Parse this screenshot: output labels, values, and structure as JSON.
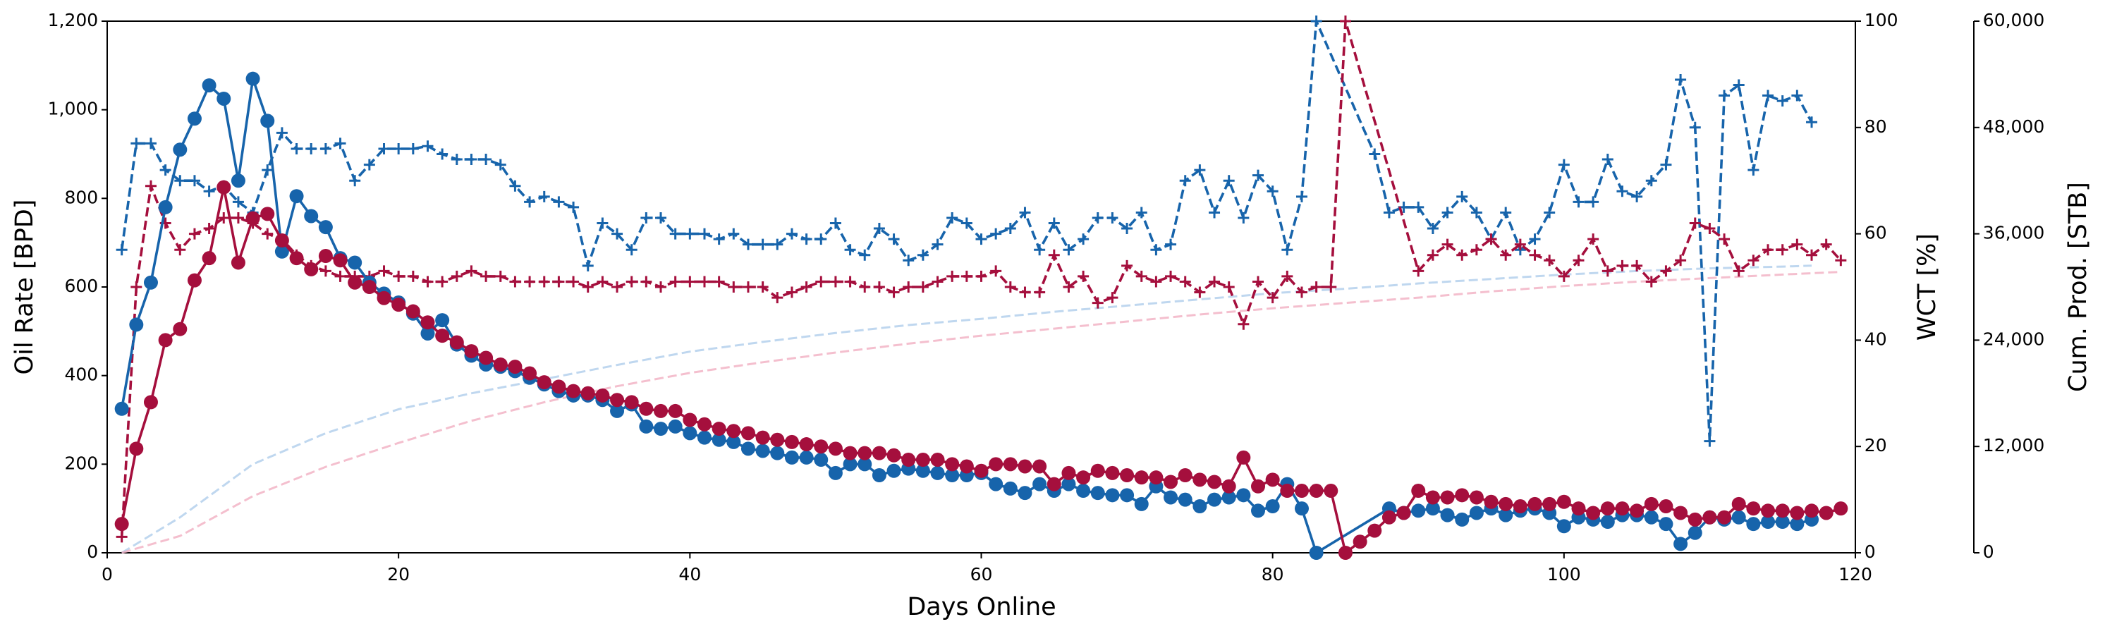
{
  "chart_data": {
    "type": "line",
    "xlabel": "Days Online",
    "ylabel": "Oil Rate [BPD]",
    "y2label": "WCT [%]",
    "y3label": "Cum. Prod. [STB]",
    "xlim": [
      0,
      120
    ],
    "xticks": [
      0,
      20,
      40,
      60,
      80,
      100,
      120
    ],
    "ylim": [
      0,
      1200
    ],
    "yticks": [
      0,
      200,
      400,
      600,
      800,
      {
        "value": 1000,
        "label": "1,000"
      },
      {
        "value": 1200,
        "label": "1,200"
      }
    ],
    "y2lim": [
      0,
      100
    ],
    "y2ticks": [
      0,
      20,
      40,
      60,
      80,
      100
    ],
    "y3lim": [
      0,
      60000
    ],
    "y3ticks": [
      0,
      {
        "value": 12000,
        "label": "12,000"
      },
      {
        "value": 24000,
        "label": "24,000"
      },
      {
        "value": 36000,
        "label": "36,000"
      },
      {
        "value": 48000,
        "label": "48,000"
      },
      {
        "value": 60000,
        "label": "60,000"
      }
    ],
    "series": [
      {
        "axis": "y3",
        "color": "#a9c9ea",
        "dash": true,
        "opacity": 0.75,
        "x": [
          1,
          5,
          10,
          15,
          20,
          25,
          30,
          35,
          40,
          45,
          50,
          55,
          60,
          65,
          70,
          75,
          80,
          85,
          90,
          95,
          100,
          105,
          110,
          115,
          117
        ],
        "values": [
          0,
          4000,
          10000,
          13500,
          16200,
          18000,
          19600,
          21200,
          22700,
          23800,
          24800,
          25700,
          26400,
          27200,
          27900,
          28600,
          29300,
          29800,
          30400,
          30900,
          31400,
          31800,
          32100,
          32300,
          32400
        ]
      },
      {
        "axis": "y3",
        "color": "#f0a9bd",
        "dash": true,
        "opacity": 0.75,
        "x": [
          1,
          5,
          10,
          15,
          20,
          25,
          30,
          35,
          40,
          45,
          50,
          55,
          60,
          65,
          70,
          75,
          80,
          85,
          90,
          95,
          100,
          105,
          110,
          115,
          119
        ],
        "values": [
          0,
          1900,
          6400,
          9700,
          12400,
          14900,
          17000,
          18800,
          20300,
          21500,
          22600,
          23600,
          24500,
          25300,
          26100,
          26900,
          27600,
          28200,
          28800,
          29500,
          30100,
          30600,
          31000,
          31400,
          31700
        ]
      },
      {
        "axis": "y2",
        "color": "#1764ab",
        "dash": true,
        "marker": "+",
        "x": [
          1,
          2,
          3,
          4,
          5,
          6,
          7,
          8,
          9,
          10,
          11,
          12,
          13,
          14,
          15,
          16,
          17,
          18,
          19,
          20,
          21,
          22,
          23,
          24,
          25,
          26,
          27,
          28,
          29,
          30,
          31,
          32,
          33,
          34,
          35,
          36,
          37,
          38,
          39,
          40,
          41,
          42,
          43,
          44,
          45,
          46,
          47,
          48,
          49,
          50,
          51,
          52,
          53,
          54,
          55,
          56,
          57,
          58,
          59,
          60,
          61,
          62,
          63,
          64,
          65,
          66,
          67,
          68,
          69,
          70,
          71,
          72,
          73,
          74,
          75,
          76,
          77,
          78,
          79,
          80,
          81,
          82,
          83,
          87,
          88,
          89,
          90,
          91,
          92,
          93,
          94,
          95,
          96,
          97,
          98,
          99,
          100,
          101,
          102,
          103,
          104,
          105,
          106,
          107,
          108,
          109,
          110,
          111,
          112,
          113,
          114,
          115,
          116,
          117
        ],
        "values": [
          57,
          77,
          77,
          72,
          70,
          70,
          68,
          69,
          66,
          64,
          72,
          79,
          76,
          76,
          76,
          77,
          70,
          73,
          76,
          76,
          76,
          76.5,
          75,
          74,
          74,
          74,
          73,
          69,
          66,
          67,
          66,
          65,
          54,
          62,
          60,
          57,
          63,
          63,
          60,
          60,
          60,
          59,
          60,
          58,
          58,
          58,
          60,
          59,
          59,
          62,
          57,
          56,
          61,
          59,
          55,
          56,
          58,
          63,
          62,
          59,
          60,
          61,
          64,
          57,
          62,
          57,
          59,
          63,
          63,
          61,
          64,
          57,
          58,
          70,
          72,
          64,
          70,
          63,
          71,
          68,
          57,
          67,
          100,
          75,
          64,
          65,
          65,
          61,
          64,
          67,
          64,
          59,
          64,
          57,
          59,
          64,
          73,
          66,
          66,
          74,
          68,
          67,
          70,
          73,
          89,
          80,
          21,
          86,
          88,
          72,
          86,
          85,
          86,
          81
        ]
      },
      {
        "axis": "y2",
        "color": "#a50f3d",
        "dash": true,
        "marker": "+",
        "x": [
          1,
          2,
          3,
          4,
          5,
          6,
          7,
          8,
          9,
          10,
          11,
          12,
          13,
          14,
          15,
          16,
          17,
          18,
          19,
          20,
          21,
          22,
          23,
          24,
          25,
          26,
          27,
          28,
          29,
          30,
          31,
          32,
          33,
          34,
          35,
          36,
          37,
          38,
          39,
          40,
          41,
          42,
          43,
          44,
          45,
          46,
          47,
          48,
          49,
          50,
          51,
          52,
          53,
          54,
          55,
          56,
          57,
          58,
          59,
          60,
          61,
          62,
          63,
          64,
          65,
          66,
          67,
          68,
          69,
          70,
          71,
          72,
          73,
          74,
          75,
          76,
          77,
          78,
          79,
          80,
          81,
          82,
          83,
          84,
          85,
          90,
          91,
          92,
          93,
          94,
          95,
          96,
          97,
          98,
          99,
          100,
          101,
          102,
          103,
          104,
          105,
          106,
          107,
          108,
          109,
          110,
          111,
          112,
          113,
          114,
          115,
          116,
          117,
          118,
          119
        ],
        "values": [
          3,
          50,
          69,
          62,
          57,
          60,
          61,
          63,
          63,
          62,
          60,
          59,
          56,
          54,
          53,
          52,
          52,
          52,
          53,
          52,
          52,
          51,
          51,
          52,
          53,
          52,
          52,
          51,
          51,
          51,
          51,
          51,
          50,
          51,
          50,
          51,
          51,
          50,
          51,
          51,
          51,
          51,
          50,
          50,
          50,
          48,
          49,
          50,
          51,
          51,
          51,
          50,
          50,
          49,
          50,
          50,
          51,
          52,
          52,
          52,
          53,
          50,
          49,
          49,
          56,
          50,
          52,
          47,
          48,
          54,
          52,
          51,
          52,
          51,
          49,
          51,
          50,
          43,
          51,
          48,
          52,
          49,
          50,
          50,
          100,
          53,
          56,
          58,
          56,
          57,
          59,
          56,
          58,
          56,
          55,
          52,
          55,
          59,
          53,
          54,
          54,
          51,
          53,
          55,
          62,
          61,
          59,
          53,
          55,
          57,
          57,
          58,
          56,
          58,
          55
        ]
      },
      {
        "axis": "y",
        "color": "#1764ab",
        "dash": false,
        "marker": "o",
        "x": [
          1,
          2,
          3,
          4,
          5,
          6,
          7,
          8,
          9,
          10,
          11,
          12,
          13,
          14,
          15,
          16,
          17,
          18,
          19,
          20,
          21,
          22,
          23,
          24,
          25,
          26,
          27,
          28,
          29,
          30,
          31,
          32,
          33,
          34,
          35,
          36,
          37,
          38,
          39,
          40,
          41,
          42,
          43,
          44,
          45,
          46,
          47,
          48,
          49,
          50,
          51,
          52,
          53,
          54,
          55,
          56,
          57,
          58,
          59,
          60,
          61,
          62,
          63,
          64,
          65,
          66,
          67,
          68,
          69,
          70,
          71,
          72,
          73,
          74,
          75,
          76,
          77,
          78,
          79,
          80,
          81,
          82,
          83,
          88,
          89,
          90,
          91,
          92,
          93,
          94,
          95,
          96,
          97,
          98,
          99,
          100,
          101,
          102,
          103,
          104,
          105,
          106,
          107,
          108,
          109,
          110,
          111,
          112,
          113,
          114,
          115,
          116,
          117
        ],
        "values": [
          325,
          515,
          610,
          780,
          910,
          980,
          1055,
          1025,
          840,
          1070,
          975,
          680,
          805,
          760,
          735,
          665,
          655,
          610,
          585,
          565,
          540,
          495,
          525,
          470,
          445,
          425,
          420,
          410,
          395,
          380,
          365,
          355,
          355,
          345,
          320,
          335,
          285,
          280,
          285,
          270,
          260,
          255,
          250,
          235,
          230,
          225,
          215,
          215,
          210,
          180,
          200,
          200,
          175,
          185,
          190,
          185,
          180,
          175,
          175,
          180,
          155,
          145,
          135,
          155,
          140,
          155,
          140,
          135,
          130,
          130,
          110,
          150,
          125,
          120,
          105,
          120,
          125,
          130,
          95,
          105,
          155,
          100,
          0,
          100,
          90,
          95,
          100,
          85,
          75,
          90,
          100,
          85,
          95,
          100,
          90,
          60,
          80,
          75,
          70,
          85,
          85,
          80,
          65,
          20,
          45,
          80,
          75,
          80,
          65,
          70,
          70,
          65,
          75
        ]
      },
      {
        "axis": "y",
        "color": "#a50f3d",
        "dash": false,
        "marker": "o",
        "x": [
          1,
          2,
          3,
          4,
          5,
          6,
          7,
          8,
          9,
          10,
          11,
          12,
          13,
          14,
          15,
          16,
          17,
          18,
          19,
          20,
          21,
          22,
          23,
          24,
          25,
          26,
          27,
          28,
          29,
          30,
          31,
          32,
          33,
          34,
          35,
          36,
          37,
          38,
          39,
          40,
          41,
          42,
          43,
          44,
          45,
          46,
          47,
          48,
          49,
          50,
          51,
          52,
          53,
          54,
          55,
          56,
          57,
          58,
          59,
          60,
          61,
          62,
          63,
          64,
          65,
          66,
          67,
          68,
          69,
          70,
          71,
          72,
          73,
          74,
          75,
          76,
          77,
          78,
          79,
          80,
          81,
          82,
          83,
          84,
          85,
          86,
          87,
          88,
          89,
          90,
          91,
          92,
          93,
          94,
          95,
          96,
          97,
          98,
          99,
          100,
          101,
          102,
          103,
          104,
          105,
          106,
          107,
          108,
          109,
          110,
          111,
          112,
          113,
          114,
          115,
          116,
          117,
          118,
          119
        ],
        "values": [
          65,
          235,
          340,
          480,
          505,
          615,
          665,
          825,
          655,
          755,
          765,
          705,
          665,
          640,
          670,
          660,
          610,
          600,
          575,
          560,
          545,
          520,
          490,
          475,
          455,
          440,
          425,
          420,
          405,
          385,
          375,
          365,
          360,
          355,
          345,
          340,
          325,
          320,
          320,
          300,
          290,
          280,
          275,
          270,
          260,
          255,
          250,
          245,
          240,
          235,
          225,
          225,
          225,
          220,
          210,
          210,
          210,
          200,
          195,
          185,
          200,
          200,
          195,
          195,
          155,
          180,
          170,
          185,
          180,
          175,
          170,
          170,
          160,
          175,
          165,
          160,
          150,
          215,
          150,
          165,
          140,
          140,
          140,
          140,
          0,
          25,
          50,
          80,
          90,
          140,
          125,
          125,
          130,
          125,
          115,
          110,
          105,
          110,
          110,
          115,
          100,
          90,
          100,
          100,
          95,
          110,
          105,
          90,
          75,
          80,
          80,
          110,
          100,
          95,
          95,
          90,
          95,
          90,
          100
        ]
      }
    ]
  }
}
